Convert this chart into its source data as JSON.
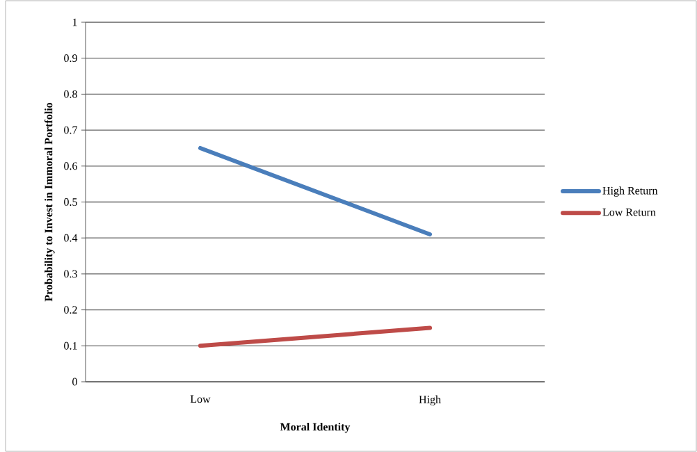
{
  "chart_data": {
    "type": "line",
    "xlabel": "Moral Identity",
    "ylabel": "Probability to Invest in Immoral Portfolio",
    "categories": [
      "Low",
      "High"
    ],
    "series": [
      {
        "name": "High Return",
        "color": "#4a7ebb",
        "values": [
          0.65,
          0.41
        ]
      },
      {
        "name": "Low Return",
        "color": "#be4b48",
        "values": [
          0.1,
          0.15
        ]
      }
    ],
    "ylim": [
      0,
      1
    ],
    "yticks": [
      0,
      0.1,
      0.2,
      0.3,
      0.4,
      0.5,
      0.6,
      0.7,
      0.8,
      0.9,
      1
    ],
    "grid": "y",
    "legend": "right",
    "marker": "none",
    "line_style": "solid"
  }
}
